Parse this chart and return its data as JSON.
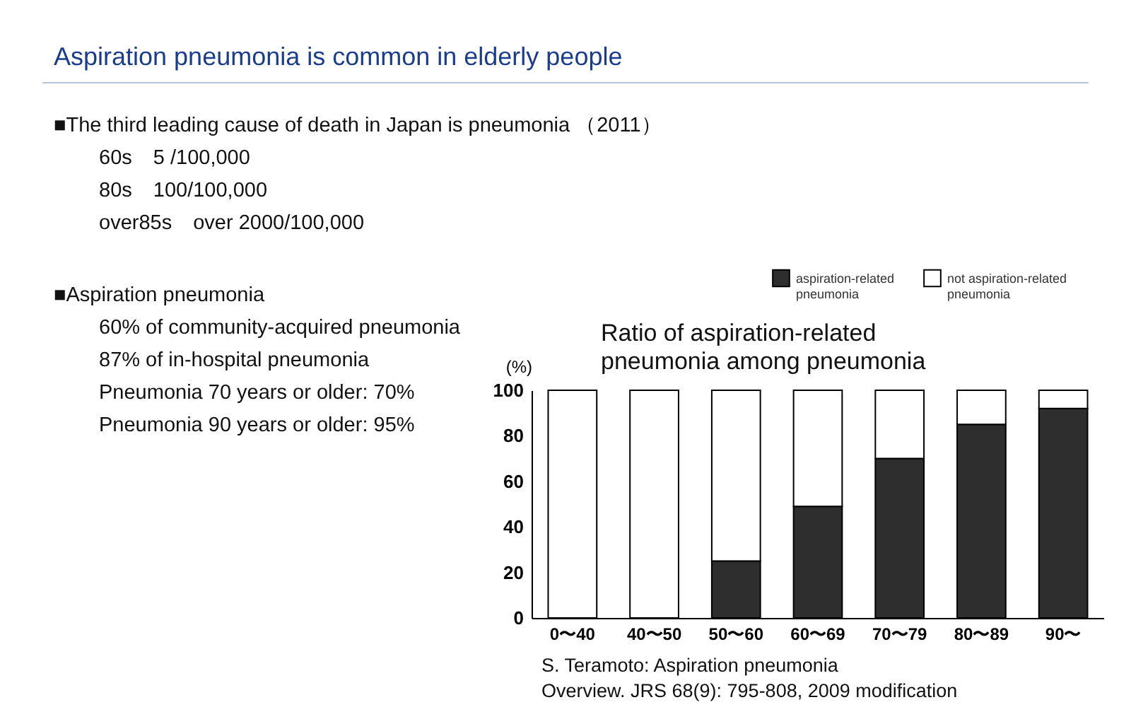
{
  "chart_data": {
    "type": "bar",
    "title": "Aspiration pneumonia is common in elderly people",
    "subtitle": "Ratio of aspiration-related pneumonia among pneumonia",
    "ylabel": "(%)",
    "annotations": [
      "■The third leading cause of death in Japan is pneumonia （2011）",
      "60s　5 /100,000",
      "80s　100/100,000",
      "over85s　over 2000/100,000",
      "■Aspiration pneumonia",
      "60% of community-acquired pneumonia",
      "87% of in-hospital pneumonia",
      "Pneumonia 70 years or older: 70%",
      "Pneumonia 90 years or older: 95%",
      "S. Teramoto: Aspiration pneumonia",
      "Overview. JRS 68(9): 795-808, 2009 modification"
    ],
    "categories": [
      "0〜40",
      "40〜50",
      "50〜60",
      "60〜69",
      "70〜79",
      "80〜89",
      "90〜"
    ],
    "stacked": true,
    "series": [
      {
        "name": "aspiration-related pneumonia",
        "color": "#2e2e2e",
        "values": [
          0,
          0,
          25,
          49,
          70,
          85,
          92
        ]
      },
      {
        "name": "not aspiration-related pneumonia",
        "color": "#ffffff",
        "values": [
          100,
          100,
          75,
          51,
          30,
          15,
          8
        ]
      }
    ],
    "ylim": [
      0,
      100
    ],
    "yticks": [
      0,
      20,
      40,
      60,
      80,
      100
    ],
    "grid": false,
    "legend": "top right"
  }
}
